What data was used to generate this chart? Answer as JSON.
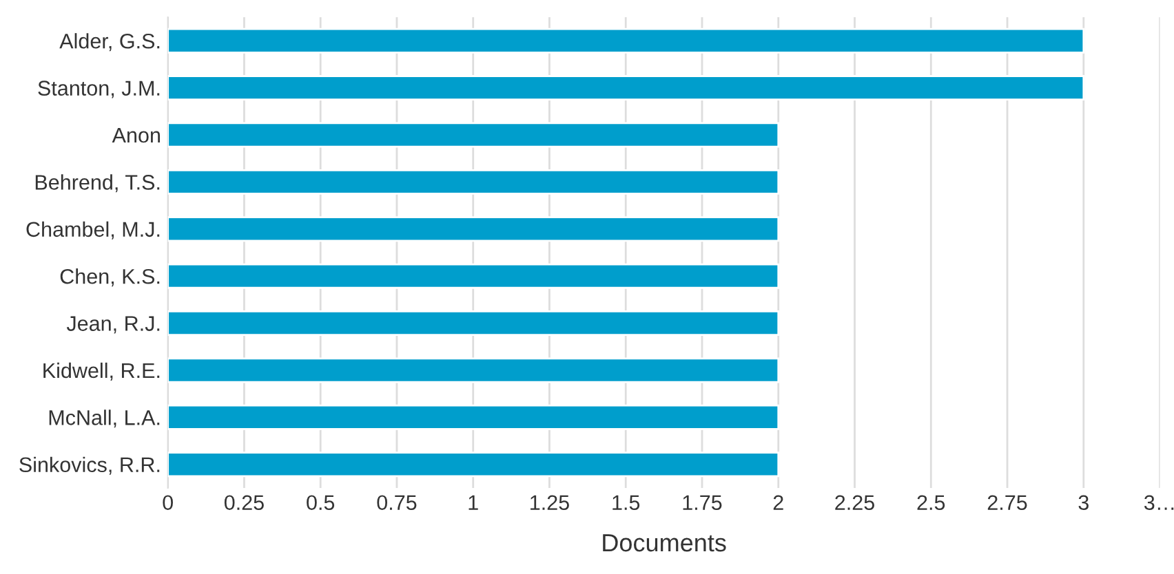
{
  "chart_data": {
    "type": "bar",
    "orientation": "horizontal",
    "xlabel": "Documents",
    "categories": [
      "Alder, G.S.",
      "Stanton, J.M.",
      "Anon",
      "Behrend, T.S.",
      "Chambel, M.J.",
      "Chen, K.S.",
      "Jean, R.J.",
      "Kidwell, R.E.",
      "McNall, L.A.",
      "Sinkovics, R.R."
    ],
    "values": [
      3,
      3,
      2,
      2,
      2,
      2,
      2,
      2,
      2,
      2
    ],
    "color": "#009ecc",
    "xlim": [
      0,
      3.25
    ],
    "xticks": [
      0,
      0.25,
      0.5,
      0.75,
      1,
      1.25,
      1.5,
      1.75,
      2,
      2.25,
      2.5,
      2.75,
      3,
      {
        "value": 3.25,
        "label": "3…"
      }
    ],
    "grid": "x",
    "legend": false
  }
}
